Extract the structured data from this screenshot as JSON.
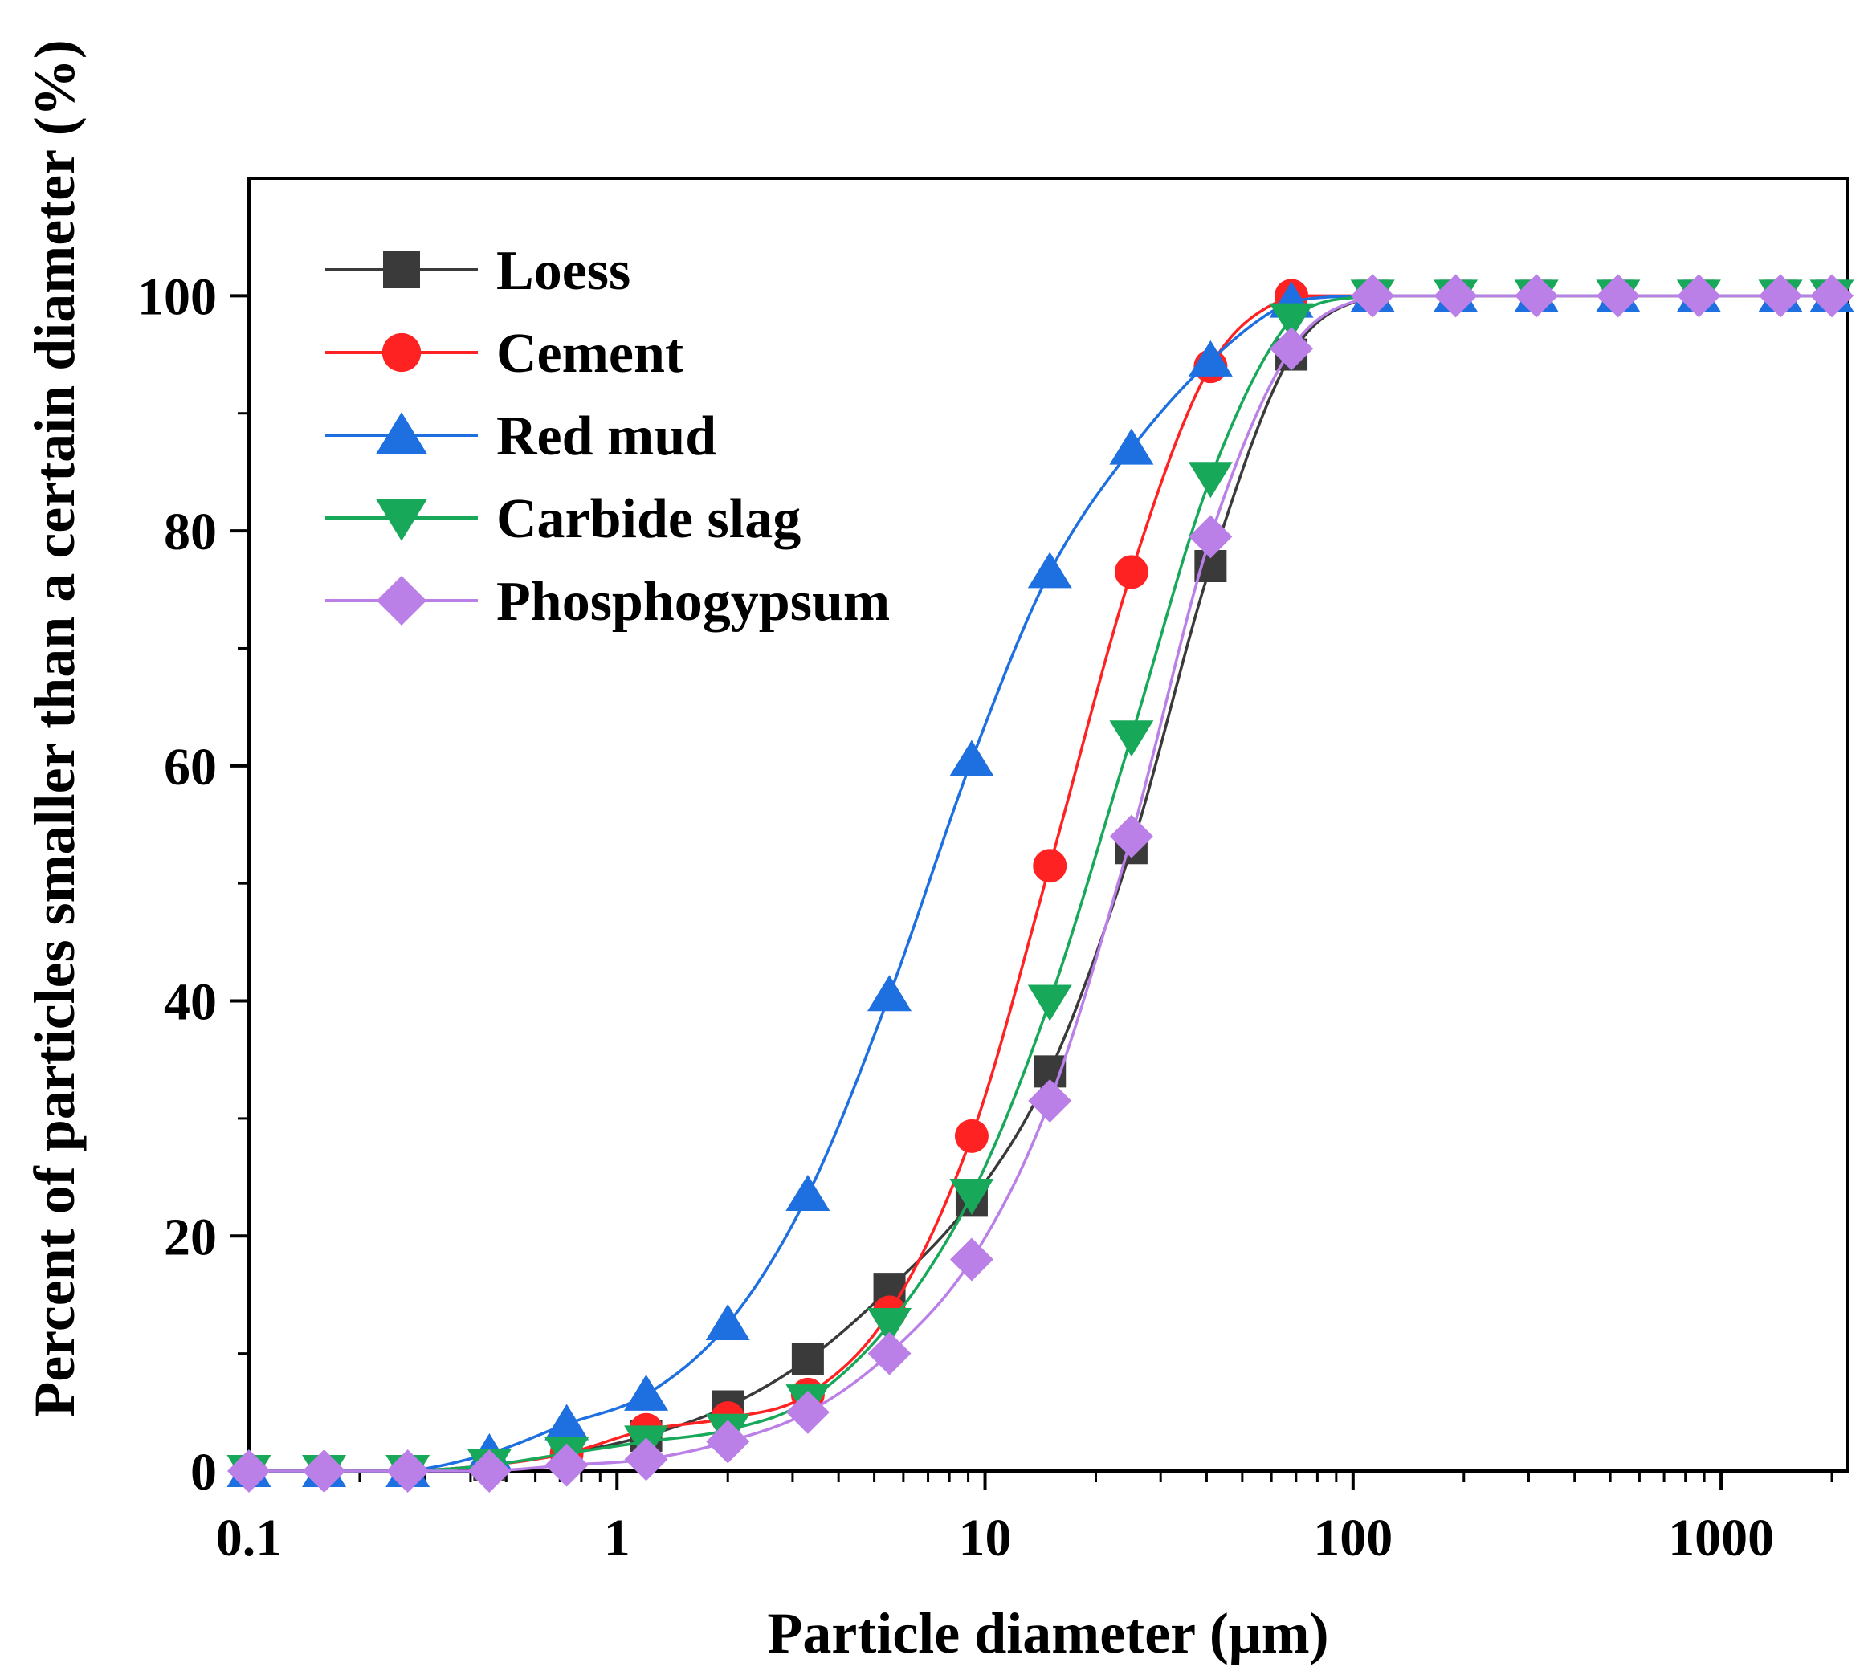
{
  "chart_data": {
    "type": "line",
    "x_scale": "log",
    "xlabel": "Particle diameter (μm)",
    "ylabel": "Percent of particles smaller than a certain diameter (%)",
    "xlim": [
      0.1,
      2200
    ],
    "ylim": [
      0,
      110
    ],
    "x_ticks": [
      {
        "value": 0.1,
        "label": "0.1"
      },
      {
        "value": 1,
        "label": "1"
      },
      {
        "value": 10,
        "label": "10"
      },
      {
        "value": 100,
        "label": "100"
      },
      {
        "value": 1000,
        "label": "1000"
      }
    ],
    "y_ticks": [
      {
        "value": 0,
        "label": "0"
      },
      {
        "value": 20,
        "label": "20"
      },
      {
        "value": 40,
        "label": "40"
      },
      {
        "value": 60,
        "label": "60"
      },
      {
        "value": 80,
        "label": "80"
      },
      {
        "value": 100,
        "label": "100"
      }
    ],
    "legend_position": "top-left",
    "x": [
      0.1,
      0.16,
      0.27,
      0.45,
      0.73,
      1.2,
      2.0,
      3.3,
      5.5,
      9.2,
      15,
      25,
      41,
      68,
      113,
      190,
      315,
      525,
      870,
      1450,
      2000
    ],
    "series": [
      {
        "name": "Loess",
        "color": "#3a3a3a",
        "marker": "square",
        "values": [
          0,
          0,
          0,
          0.5,
          1.5,
          3,
          5.5,
          9.5,
          15.5,
          23,
          34,
          53,
          77,
          95,
          100,
          100,
          100,
          100,
          100,
          100,
          100
        ]
      },
      {
        "name": "Cement",
        "color": "#ff2222",
        "marker": "circle",
        "values": [
          0,
          0,
          0,
          0.5,
          1.5,
          3.5,
          4.5,
          6.5,
          13.5,
          28.5,
          51.5,
          76.5,
          94,
          100,
          100,
          100,
          100,
          100,
          100,
          100,
          100
        ]
      },
      {
        "name": "Red mud",
        "color": "#1e6fe0",
        "marker": "triangle-up",
        "values": [
          0,
          0,
          0,
          1.5,
          4,
          6.5,
          12.5,
          23.5,
          40.5,
          60.5,
          76.5,
          87,
          94.5,
          99.5,
          100,
          100,
          100,
          100,
          100,
          100,
          100
        ]
      },
      {
        "name": "Carbide slag",
        "color": "#18a85a",
        "marker": "triangle-down",
        "values": [
          0,
          0,
          0,
          0.5,
          1.5,
          2.5,
          3.5,
          6,
          12.5,
          23.5,
          40,
          62.5,
          84.5,
          98,
          100,
          100,
          100,
          100,
          100,
          100,
          100
        ]
      },
      {
        "name": "Phosphogypsum",
        "color": "#bb7fe8",
        "marker": "diamond",
        "values": [
          0,
          0,
          0,
          0,
          0.5,
          1,
          2.5,
          5,
          10,
          18,
          31.5,
          54,
          79.5,
          95.5,
          100,
          100,
          100,
          100,
          100,
          100,
          100
        ]
      }
    ]
  }
}
